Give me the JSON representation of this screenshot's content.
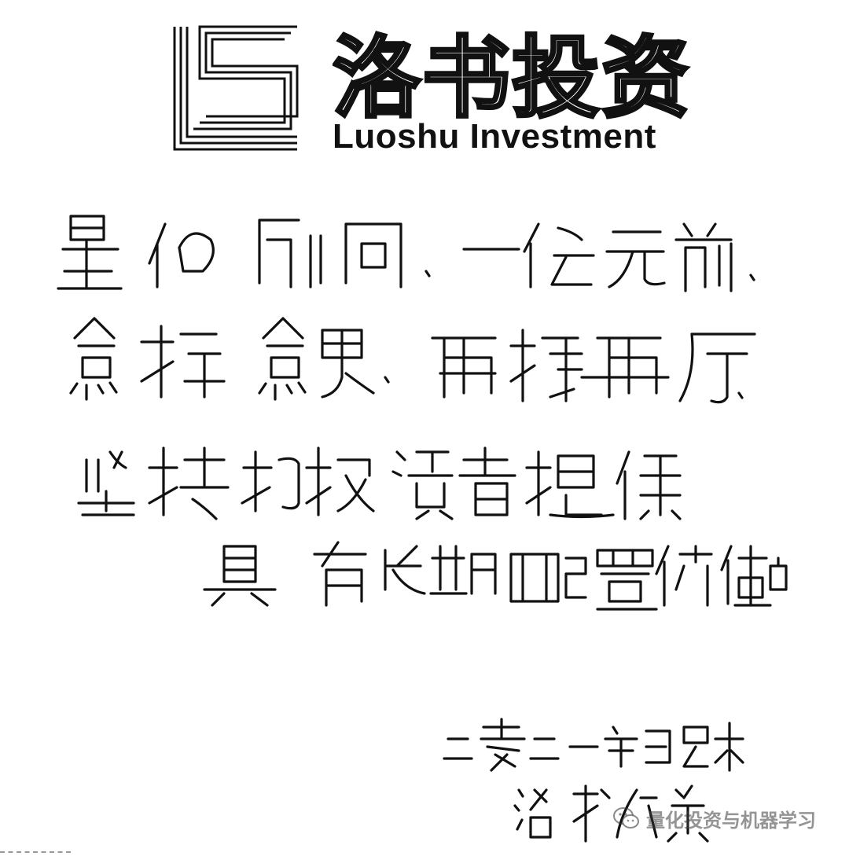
{
  "letterhead": {
    "logo_icon": "luoshu-ls-logo-icon",
    "brand_cn": "洛书投资",
    "brand_en": "Luoshu Investment"
  },
  "note": {
    "lines": [
      "量化所向，一往无前。",
      "愈挫愈勇，再接再厉。",
      "坚持为投资者提供",
      "具有长期配置价值的产品"
    ]
  },
  "signature": {
    "date": "二零二一年岁末",
    "name": "洛书投资"
  },
  "watermark": {
    "icon": "wechat-icon",
    "text": "量化投资与机器学习"
  }
}
